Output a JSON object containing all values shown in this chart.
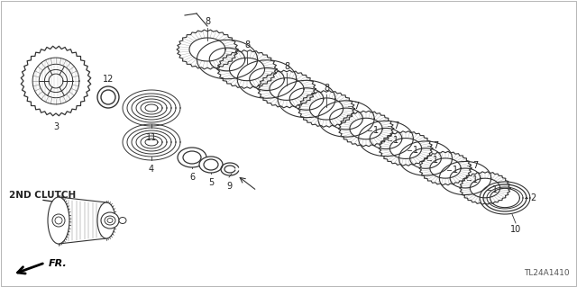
{
  "background_color": "#ffffff",
  "label_2nd_clutch": "2ND CLUTCH",
  "label_fr": "FR.",
  "diagram_code": "TL24A1410",
  "fig_width": 6.4,
  "fig_height": 3.19,
  "dpi": 100,
  "line_color": "#333333",
  "text_color": "#222222"
}
